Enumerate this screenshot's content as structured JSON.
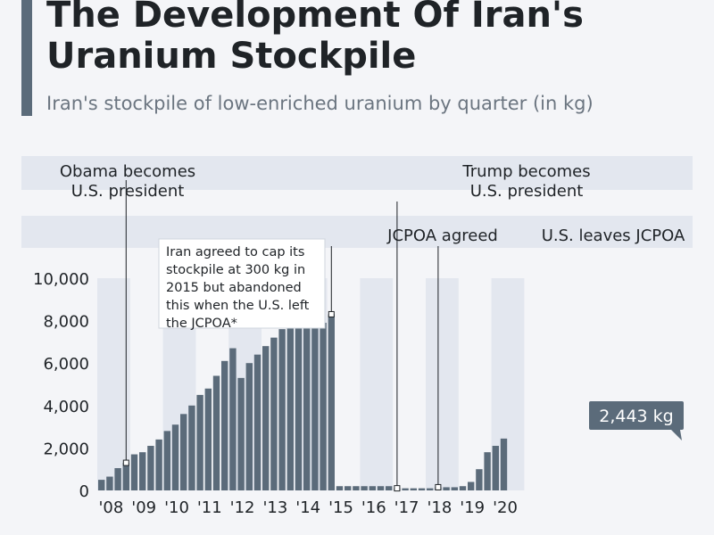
{
  "header": {
    "title_line1": "The Development Of Iran's",
    "title_line2": "Uranium Stockpile",
    "subtitle": "Iran's stockpile of low-enriched uranium by quarter (in kg)"
  },
  "colors": {
    "bar": "#5b6b7a",
    "band": "#e3e7ef",
    "accent": "#5b6b7a",
    "callout_bg": "#5b6b7a"
  },
  "annotations": {
    "obama": [
      "Obama becomes",
      "U.S. president"
    ],
    "trump": [
      "Trump becomes",
      "U.S. president"
    ],
    "jcpoa_agreed": "JCPOA agreed",
    "us_leaves": "U.S. leaves JCPOA",
    "note": [
      "Iran agreed to cap its",
      "stockpile at 300 kg in",
      "2015 but abandoned",
      "this when the U.S. left",
      "the JCPOA*"
    ],
    "last_value": "2,443 kg"
  },
  "chart_data": {
    "type": "bar",
    "title": "The Development Of Iran's Uranium Stockpile",
    "subtitle": "Iran's stockpile of low-enriched uranium by quarter (in kg)",
    "ylim": [
      0,
      10000
    ],
    "y_ticks": [
      0,
      2000,
      4000,
      6000,
      8000,
      10000
    ],
    "y_tick_labels": [
      "0",
      "2,000",
      "4,000",
      "6,000",
      "8,000",
      "10,000"
    ],
    "year_labels": [
      "'08",
      "'09",
      "'10",
      "'11",
      "'12",
      "'13",
      "'14",
      "'15",
      "'16",
      "'17",
      "'18",
      "'19",
      "'20"
    ],
    "values": [
      500,
      650,
      1050,
      1300,
      1700,
      1800,
      2100,
      2400,
      2800,
      3100,
      3600,
      4000,
      4500,
      4800,
      5400,
      6100,
      6700,
      5300,
      6000,
      6400,
      6800,
      7200,
      7600,
      7800,
      8400,
      8000,
      8700,
      7900,
      8300,
      200,
      200,
      200,
      200,
      200,
      200,
      200,
      100,
      100,
      100,
      100,
      100,
      150,
      150,
      150,
      200,
      400,
      1000,
      1800,
      2100,
      2443
    ],
    "grid": false
  }
}
